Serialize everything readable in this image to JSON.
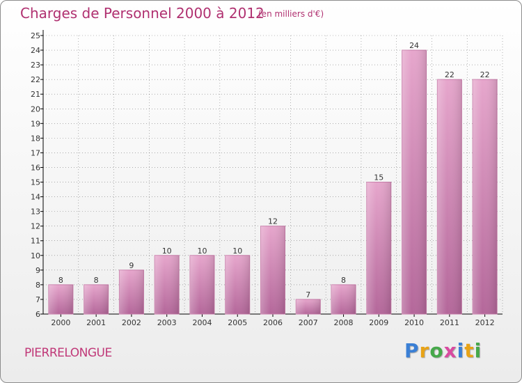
{
  "title": "Charges de Personnel 2000 à 2012",
  "subtitle": "(en milliers d'€)",
  "commune": "PIERRELONGUE",
  "logo": {
    "letters": [
      "P",
      "r",
      "o",
      "x",
      "i",
      "t",
      "i"
    ],
    "colors": [
      "#3a7fd5",
      "#e8a317",
      "#46a84a",
      "#d94aa0",
      "#3a7fd5",
      "#e8a317",
      "#46a84a"
    ]
  },
  "colors": {
    "bar": "#d98cb8",
    "title": "#b03070",
    "grid": "#000000"
  },
  "chart_data": {
    "type": "bar",
    "categories": [
      "2000",
      "2001",
      "2002",
      "2003",
      "2004",
      "2005",
      "2006",
      "2007",
      "2008",
      "2009",
      "2010",
      "2011",
      "2012"
    ],
    "values": [
      8,
      8,
      9,
      10,
      10,
      10,
      12,
      7,
      8,
      15,
      24,
      22,
      22
    ],
    "ylim": [
      6,
      25
    ],
    "yticks": [
      6,
      7,
      8,
      9,
      10,
      11,
      12,
      13,
      14,
      15,
      16,
      17,
      18,
      19,
      20,
      21,
      22,
      23,
      24,
      25
    ],
    "grid": true
  }
}
